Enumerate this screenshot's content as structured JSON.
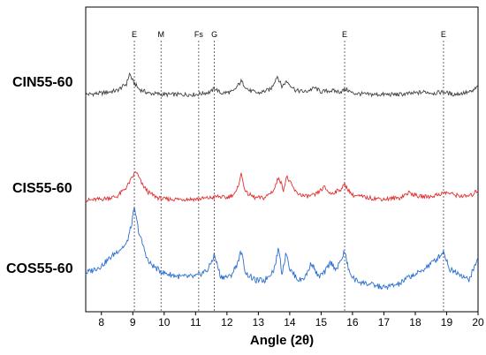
{
  "chart_data": {
    "type": "line",
    "xlabel": "Angle (2θ)",
    "ylabel": "",
    "xlim": [
      7.5,
      20
    ],
    "xticks": [
      8,
      9,
      10,
      11,
      12,
      13,
      14,
      15,
      16,
      17,
      18,
      19,
      20
    ],
    "grid": false,
    "markers": [
      {
        "label": "E",
        "x": 9.05
      },
      {
        "label": "M",
        "x": 9.9
      },
      {
        "label": "Fs",
        "x": 11.1
      },
      {
        "label": "G",
        "x": 11.6
      },
      {
        "label": "E",
        "x": 15.75
      },
      {
        "label": "E",
        "x": 18.9
      }
    ],
    "series": [
      {
        "name": "CIN55-60",
        "color": "#444444",
        "x": [
          7.5,
          8.0,
          8.5,
          8.8,
          8.9,
          9.0,
          9.2,
          9.5,
          10.0,
          10.5,
          11.0,
          11.5,
          11.6,
          11.8,
          12.2,
          12.45,
          12.7,
          13.0,
          13.4,
          13.6,
          13.75,
          13.9,
          14.2,
          14.5,
          14.8,
          15.0,
          15.3,
          15.6,
          15.8,
          16.0,
          16.5,
          17.0,
          17.5,
          18.0,
          18.3,
          18.6,
          18.9,
          19.2,
          19.5,
          19.8,
          20.0
        ],
        "values": [
          3,
          3.5,
          4.5,
          7,
          11,
          8,
          5,
          3.5,
          3,
          3,
          3,
          4,
          5.5,
          3.5,
          4,
          8,
          4.5,
          3.5,
          5,
          10,
          6,
          8,
          4.5,
          4,
          5.5,
          4,
          4.5,
          4,
          5,
          3.5,
          3,
          3,
          3,
          3.5,
          4,
          3.5,
          4,
          3,
          3.5,
          4,
          6
        ]
      },
      {
        "name": "CIS55-60",
        "color": "#e03030",
        "x": [
          7.5,
          8.0,
          8.5,
          8.8,
          9.0,
          9.1,
          9.3,
          9.5,
          9.8,
          10.0,
          10.5,
          11.0,
          11.5,
          11.7,
          12.0,
          12.3,
          12.45,
          12.6,
          12.9,
          13.2,
          13.5,
          13.65,
          13.8,
          13.9,
          14.2,
          14.5,
          14.8,
          15.1,
          15.3,
          15.6,
          15.75,
          16.0,
          16.5,
          17.0,
          17.5,
          17.8,
          18.1,
          18.5,
          18.8,
          19.0,
          19.3,
          19.6,
          19.8,
          20.0
        ],
        "values": [
          3,
          3.5,
          4.5,
          8,
          12,
          14,
          9,
          6,
          4,
          3.5,
          3.5,
          3.5,
          4,
          4.5,
          4,
          6,
          13,
          6,
          4,
          4,
          7,
          12,
          7,
          12,
          6,
          4.5,
          5,
          8,
          5.5,
          7,
          9,
          5,
          4,
          3.5,
          4,
          6,
          4.5,
          4.5,
          5.5,
          6,
          5,
          4.5,
          5,
          7
        ]
      },
      {
        "name": "COS55-60",
        "color": "#2b6fd0",
        "x": [
          7.5,
          8.0,
          8.5,
          8.8,
          8.95,
          9.05,
          9.2,
          9.5,
          9.8,
          10.0,
          10.5,
          11.0,
          11.4,
          11.6,
          11.8,
          12.1,
          12.3,
          12.45,
          12.6,
          12.9,
          13.2,
          13.5,
          13.65,
          13.75,
          13.9,
          14.0,
          14.3,
          14.5,
          14.7,
          14.9,
          15.1,
          15.3,
          15.5,
          15.75,
          15.9,
          16.1,
          16.5,
          17.0,
          17.5,
          17.8,
          18.1,
          18.4,
          18.7,
          18.9,
          19.1,
          19.4,
          19.7,
          20.0
        ],
        "values": [
          7,
          9,
          13,
          15,
          20,
          25,
          18,
          10,
          8,
          7,
          6,
          6,
          8,
          12,
          6,
          6,
          9,
          13,
          7,
          5,
          5,
          8,
          14,
          7,
          13,
          8,
          5,
          6,
          10,
          6,
          7,
          10,
          8,
          13,
          7,
          5,
          4,
          3,
          4,
          6,
          7,
          9,
          11,
          13,
          8,
          7,
          5,
          11
        ]
      }
    ]
  }
}
